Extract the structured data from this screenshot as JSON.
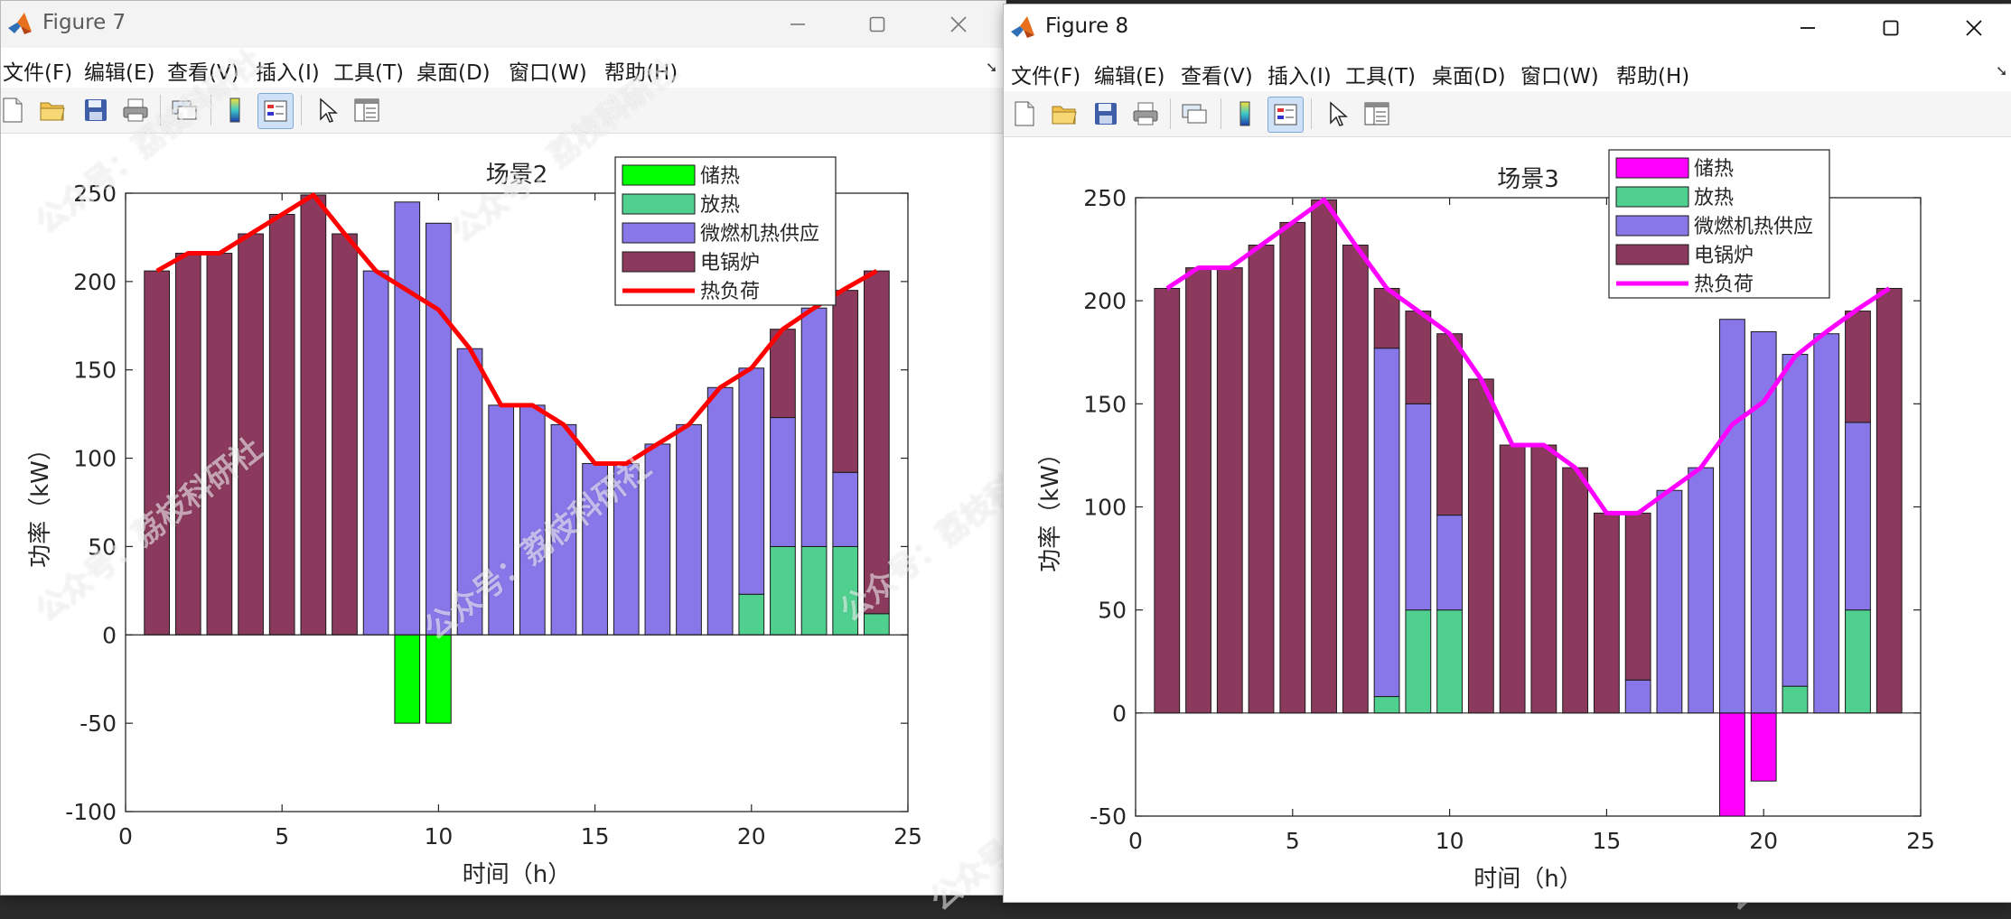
{
  "figure7": {
    "window_title": "Figure 7",
    "menu": [
      "文件(F)",
      "编辑(E)",
      "查看(V)",
      "插入(I)",
      "工具(T)",
      "桌面(D)",
      "窗口(W)",
      "帮助(H)"
    ],
    "toolbar_icons": [
      "new-figure-icon",
      "open-file-icon",
      "save-icon",
      "print-icon",
      "link-plot-icon",
      "insert-colorbar-icon",
      "insert-legend-icon",
      "edit-plot-arrow-icon",
      "property-inspector-icon"
    ]
  },
  "figure8": {
    "window_title": "Figure 8",
    "menu": [
      "文件(F)",
      "编辑(E)",
      "查看(V)",
      "插入(I)",
      "工具(T)",
      "桌面(D)",
      "窗口(W)",
      "帮助(H)"
    ],
    "toolbar_icons": [
      "new-figure-icon",
      "open-file-icon",
      "save-icon",
      "print-icon",
      "link-plot-icon",
      "insert-colorbar-icon",
      "insert-legend-icon",
      "edit-plot-arrow-icon",
      "property-inspector-icon"
    ]
  },
  "watermark_text": "公众号：荔枝科研社",
  "chart_data": [
    {
      "type": "bar",
      "stacking": "stacked",
      "title": "场景2",
      "xlabel": "时间（h）",
      "ylabel": "功率（kW）",
      "xlim": [
        0,
        25
      ],
      "ylim": [
        -100,
        250
      ],
      "xticks": [
        0,
        5,
        10,
        15,
        20,
        25
      ],
      "yticks": [
        -100,
        -50,
        0,
        50,
        100,
        150,
        200,
        250
      ],
      "grid": false,
      "legend_position": "top-right",
      "x": [
        1,
        2,
        3,
        4,
        5,
        6,
        7,
        8,
        9,
        10,
        11,
        12,
        13,
        14,
        15,
        16,
        17,
        18,
        19,
        20,
        21,
        22,
        23,
        24
      ],
      "series": [
        {
          "name": "储热",
          "color": "#00ff00",
          "values": [
            0,
            0,
            0,
            0,
            0,
            0,
            0,
            0,
            -50,
            -50,
            0,
            0,
            0,
            0,
            0,
            0,
            0,
            0,
            0,
            0,
            0,
            0,
            0,
            0
          ]
        },
        {
          "name": "放热",
          "color": "#4fd08f",
          "values": [
            0,
            0,
            0,
            0,
            0,
            0,
            0,
            0,
            0,
            0,
            0,
            0,
            0,
            0,
            0,
            0,
            0,
            0,
            0,
            23,
            50,
            50,
            50,
            12
          ]
        },
        {
          "name": "微燃机热供应",
          "color": "#8877e8",
          "values": [
            0,
            0,
            0,
            0,
            0,
            0,
            0,
            206,
            245,
            233,
            162,
            130,
            130,
            119,
            97,
            97,
            108,
            119,
            140,
            128,
            73,
            135,
            42,
            0
          ]
        },
        {
          "name": "电锅炉",
          "color": "#8b3a5e",
          "values": [
            206,
            216,
            216,
            227,
            238,
            249,
            227,
            0,
            0,
            0,
            0,
            0,
            0,
            0,
            0,
            0,
            0,
            0,
            0,
            0,
            50,
            0,
            103,
            194
          ]
        }
      ],
      "line": {
        "name": "热负荷",
        "color": "#ff0000",
        "values": [
          206,
          216,
          216,
          227,
          238,
          249,
          227,
          206,
          195,
          184,
          162,
          130,
          130,
          119,
          97,
          97,
          108,
          119,
          140,
          151,
          173,
          185,
          196,
          206
        ]
      }
    },
    {
      "type": "bar",
      "stacking": "stacked",
      "title": "场景3",
      "xlabel": "时间（h）",
      "ylabel": "功率（kW）",
      "xlim": [
        0,
        25
      ],
      "ylim": [
        -50,
        250
      ],
      "xticks": [
        0,
        5,
        10,
        15,
        20,
        25
      ],
      "yticks": [
        -50,
        0,
        50,
        100,
        150,
        200,
        250
      ],
      "grid": false,
      "legend_position": "top-right",
      "x": [
        1,
        2,
        3,
        4,
        5,
        6,
        7,
        8,
        9,
        10,
        11,
        12,
        13,
        14,
        15,
        16,
        17,
        18,
        19,
        20,
        21,
        22,
        23,
        24
      ],
      "series": [
        {
          "name": "储热",
          "color": "#ff00ff",
          "values": [
            0,
            0,
            0,
            0,
            0,
            0,
            0,
            0,
            0,
            0,
            0,
            0,
            0,
            0,
            0,
            0,
            0,
            0,
            -50,
            -33,
            0,
            0,
            0,
            0
          ]
        },
        {
          "name": "放热",
          "color": "#4fd08f",
          "values": [
            0,
            0,
            0,
            0,
            0,
            0,
            0,
            8,
            50,
            50,
            0,
            0,
            0,
            0,
            0,
            0,
            0,
            0,
            0,
            0,
            13,
            0,
            50,
            0
          ]
        },
        {
          "name": "微燃机热供应",
          "color": "#8877e8",
          "values": [
            0,
            0,
            0,
            0,
            0,
            0,
            0,
            169,
            100,
            46,
            0,
            0,
            0,
            0,
            0,
            16,
            108,
            119,
            191,
            185,
            161,
            184,
            91,
            0
          ]
        },
        {
          "name": "电锅炉",
          "color": "#8b3a5e",
          "values": [
            206,
            216,
            216,
            227,
            238,
            249,
            227,
            29,
            45,
            88,
            162,
            130,
            130,
            119,
            97,
            81,
            0,
            0,
            0,
            0,
            0,
            0,
            54,
            206
          ]
        }
      ],
      "line": {
        "name": "热负荷",
        "color": "#ff00ff",
        "values": [
          206,
          216,
          216,
          227,
          238,
          249,
          227,
          206,
          195,
          184,
          162,
          130,
          130,
          119,
          97,
          97,
          108,
          119,
          140,
          151,
          173,
          185,
          196,
          206
        ]
      }
    }
  ]
}
